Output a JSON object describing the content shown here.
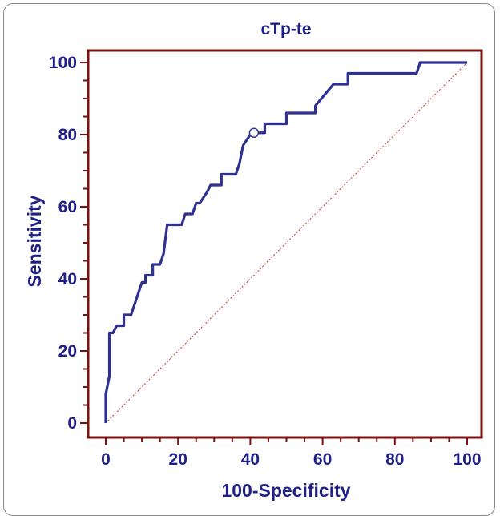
{
  "chart_data": {
    "type": "line",
    "title": "cTp-te",
    "xlabel": "100-Specificity",
    "ylabel": "Sensitivity",
    "xlim": [
      0,
      100
    ],
    "ylim": [
      0,
      100
    ],
    "x_ticks": [
      "0",
      "20",
      "40",
      "60",
      "80",
      "100"
    ],
    "y_ticks": [
      "0",
      "20",
      "40",
      "60",
      "80",
      "100"
    ],
    "grid": false,
    "colors": {
      "curve": "#2e3192",
      "frame": "#7a1010",
      "diagonal": "#c0392b",
      "text": "#1f1f8a"
    },
    "series": [
      {
        "values": [
          [
            0,
            0
          ],
          [
            0,
            8
          ],
          [
            1,
            13
          ],
          [
            1,
            25
          ],
          [
            2,
            25
          ],
          [
            3,
            27
          ],
          [
            5,
            27
          ],
          [
            5,
            30
          ],
          [
            7,
            30
          ],
          [
            8,
            33
          ],
          [
            9,
            36
          ],
          [
            10,
            39
          ],
          [
            11,
            39
          ],
          [
            11,
            41
          ],
          [
            13,
            41
          ],
          [
            13,
            44
          ],
          [
            15,
            44
          ],
          [
            16,
            47
          ],
          [
            17,
            55
          ],
          [
            21,
            55
          ],
          [
            22,
            58
          ],
          [
            24,
            58
          ],
          [
            25,
            61
          ],
          [
            26,
            61
          ],
          [
            28,
            64
          ],
          [
            29,
            66
          ],
          [
            32,
            66
          ],
          [
            32,
            69
          ],
          [
            36,
            69
          ],
          [
            37,
            72
          ],
          [
            38,
            77
          ],
          [
            40,
            80
          ],
          [
            41,
            80.5
          ],
          [
            42,
            80.5
          ],
          [
            44,
            80.5
          ],
          [
            44,
            83
          ],
          [
            50,
            83
          ],
          [
            50,
            86
          ],
          [
            58,
            86
          ],
          [
            58,
            88
          ],
          [
            63,
            94
          ],
          [
            67,
            94
          ],
          [
            67,
            97
          ],
          [
            86,
            97
          ],
          [
            87,
            100
          ],
          [
            100,
            100
          ]
        ]
      },
      {
        "values": [
          [
            0,
            0
          ],
          [
            100,
            100
          ]
        ]
      }
    ],
    "marker": {
      "x": 41,
      "y": 80.5
    }
  }
}
